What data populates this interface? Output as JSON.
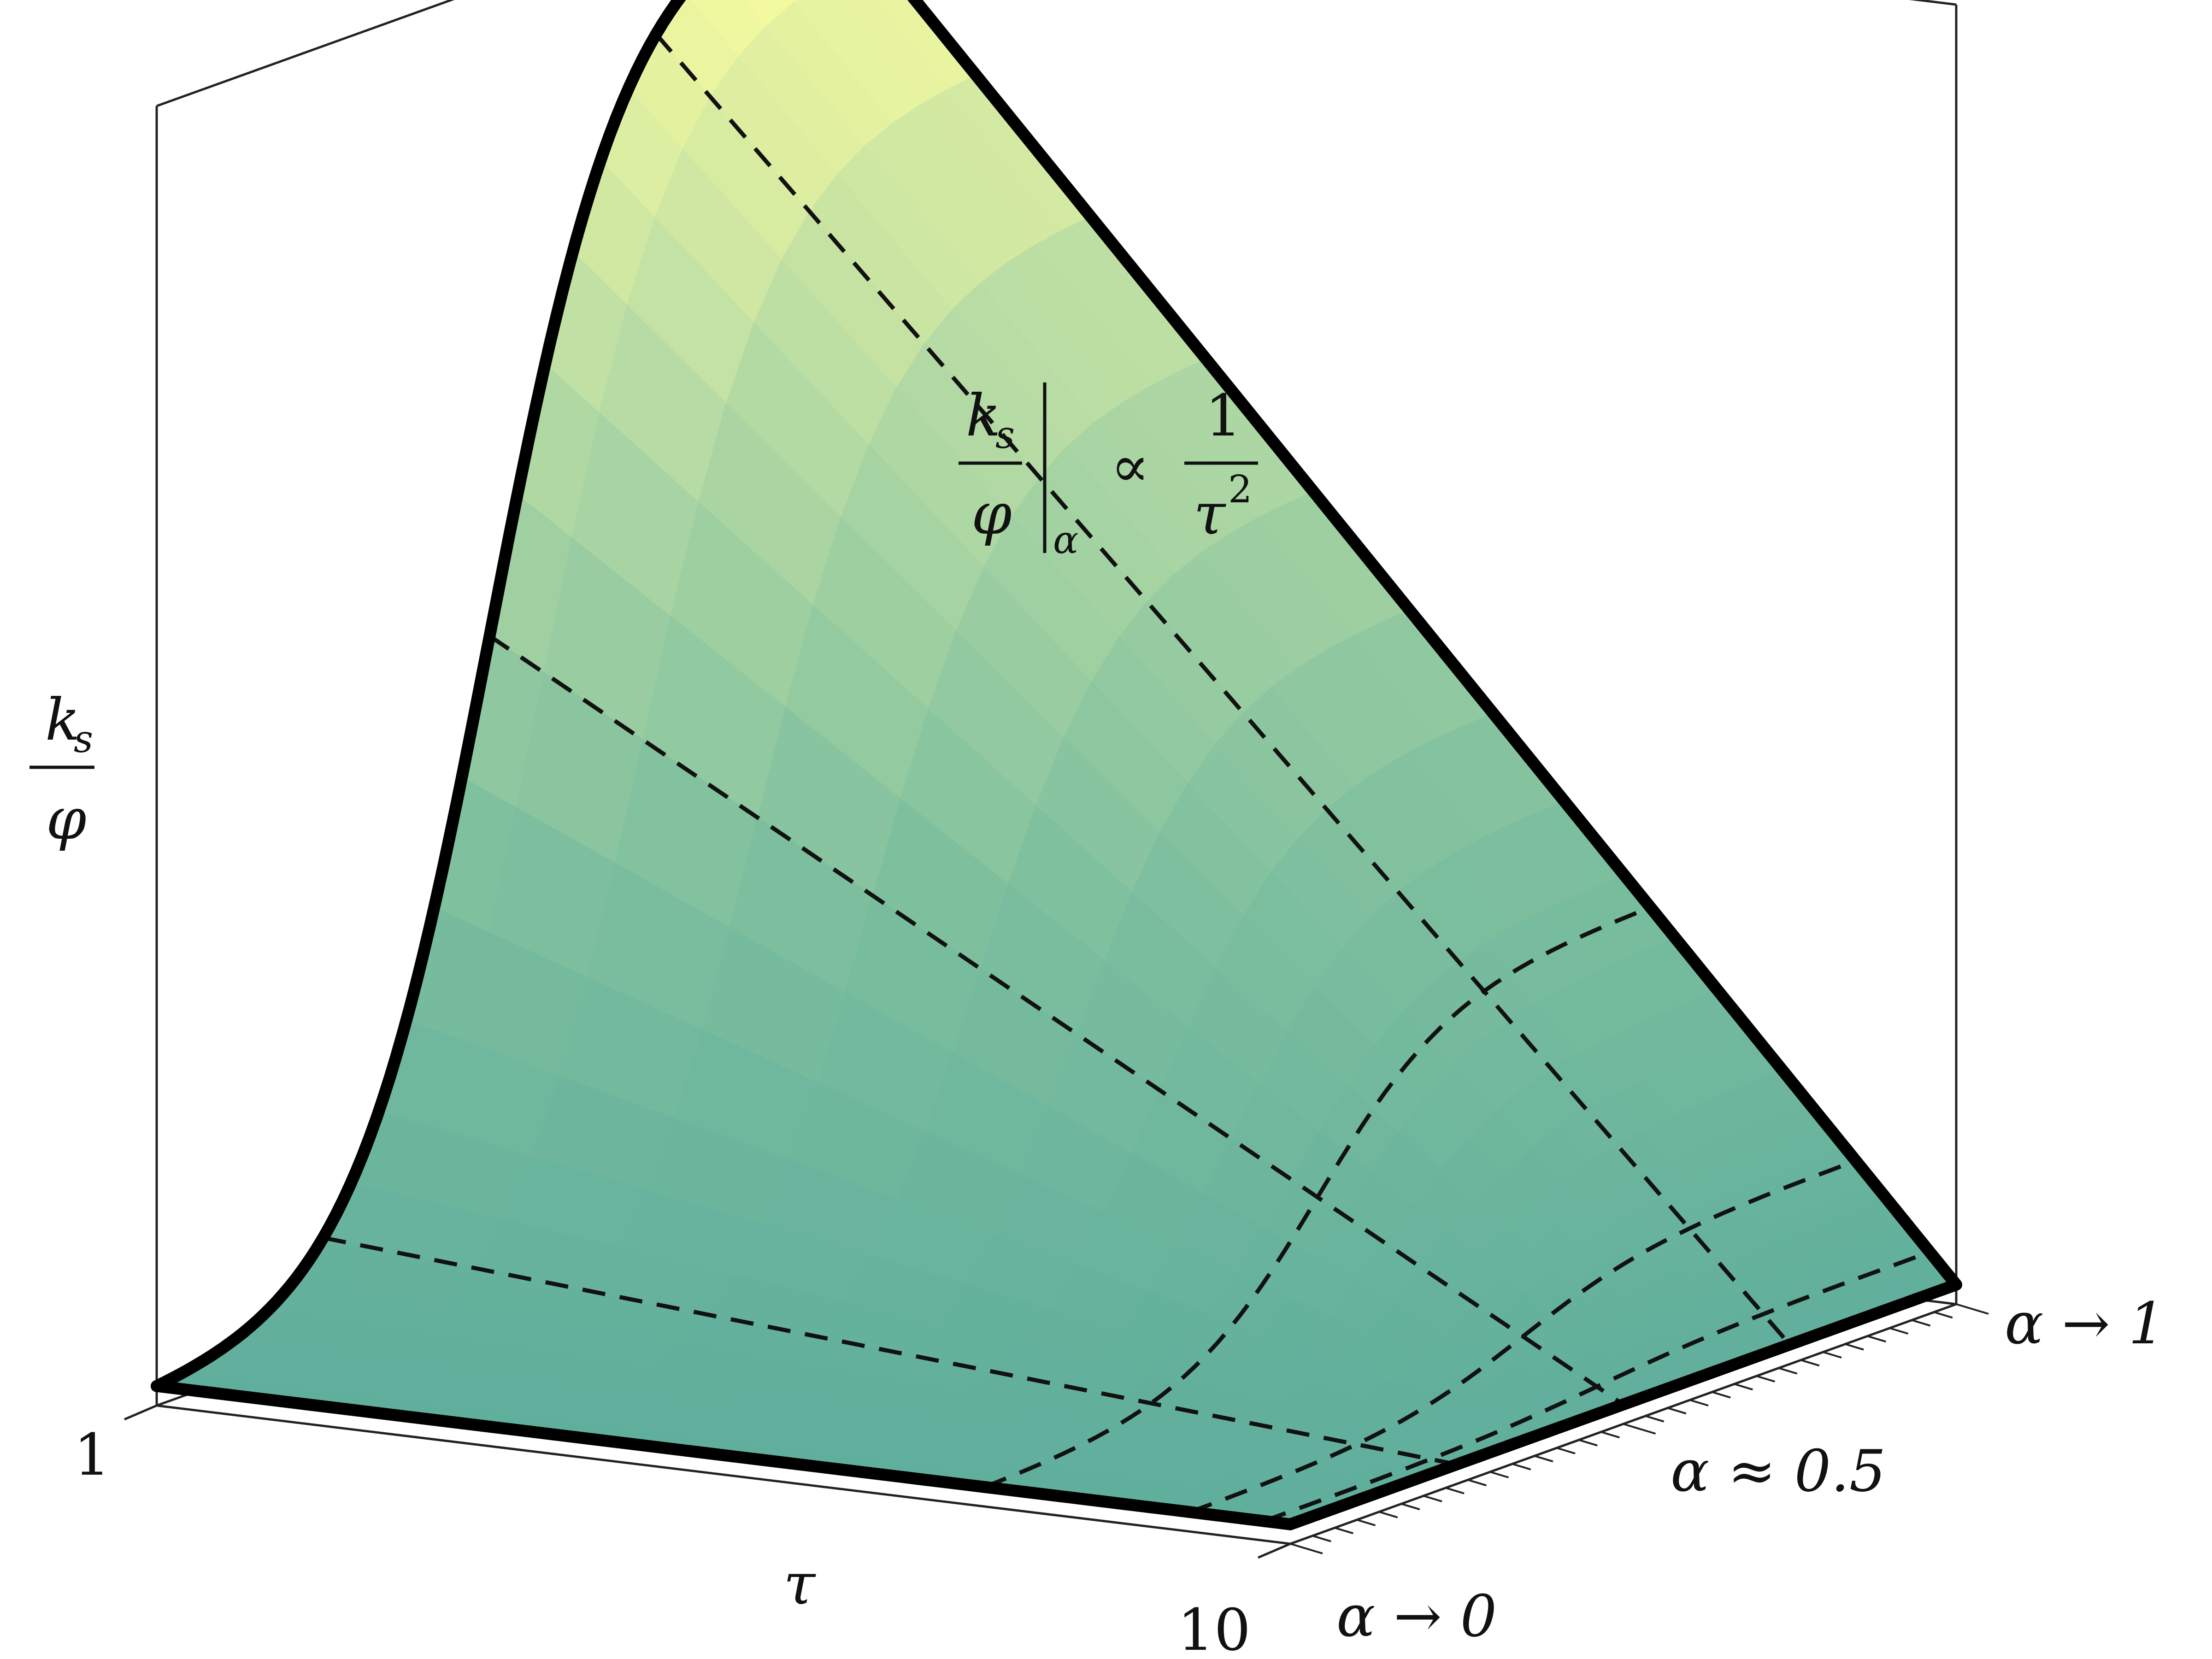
{
  "chart_data": {
    "type": "surface",
    "title": "",
    "annotation": {
      "numerator": "k",
      "numerator_sub": "s",
      "denominator": "φ",
      "eval_sub": "α",
      "relation": "∝",
      "rhs_numerator": "1",
      "rhs_denominator": "τ",
      "rhs_power": "2"
    },
    "zlabel": {
      "numerator": "k",
      "numerator_sub": "s",
      "denominator": "φ"
    },
    "xlabel": "τ",
    "x_ticks": [
      "1",
      "10"
    ],
    "xlim": [
      1,
      10
    ],
    "ylim": [
      0,
      1
    ],
    "y_ticks": [
      "α → 0",
      "α ≈ 0.5",
      "α → 1"
    ],
    "z_scale": "τ^-2 scaling, sigmoid in α",
    "grid": false,
    "colormap": [
      "#5fae9c",
      "#7dbf9e",
      "#b6dba4",
      "#ffff9e"
    ],
    "edge_color": "#000000",
    "dashed_lines": {
      "tau_values": [
        1.9,
        3.2,
        5.5
      ],
      "alpha_values": [
        0.25,
        0.5,
        0.75
      ]
    }
  }
}
